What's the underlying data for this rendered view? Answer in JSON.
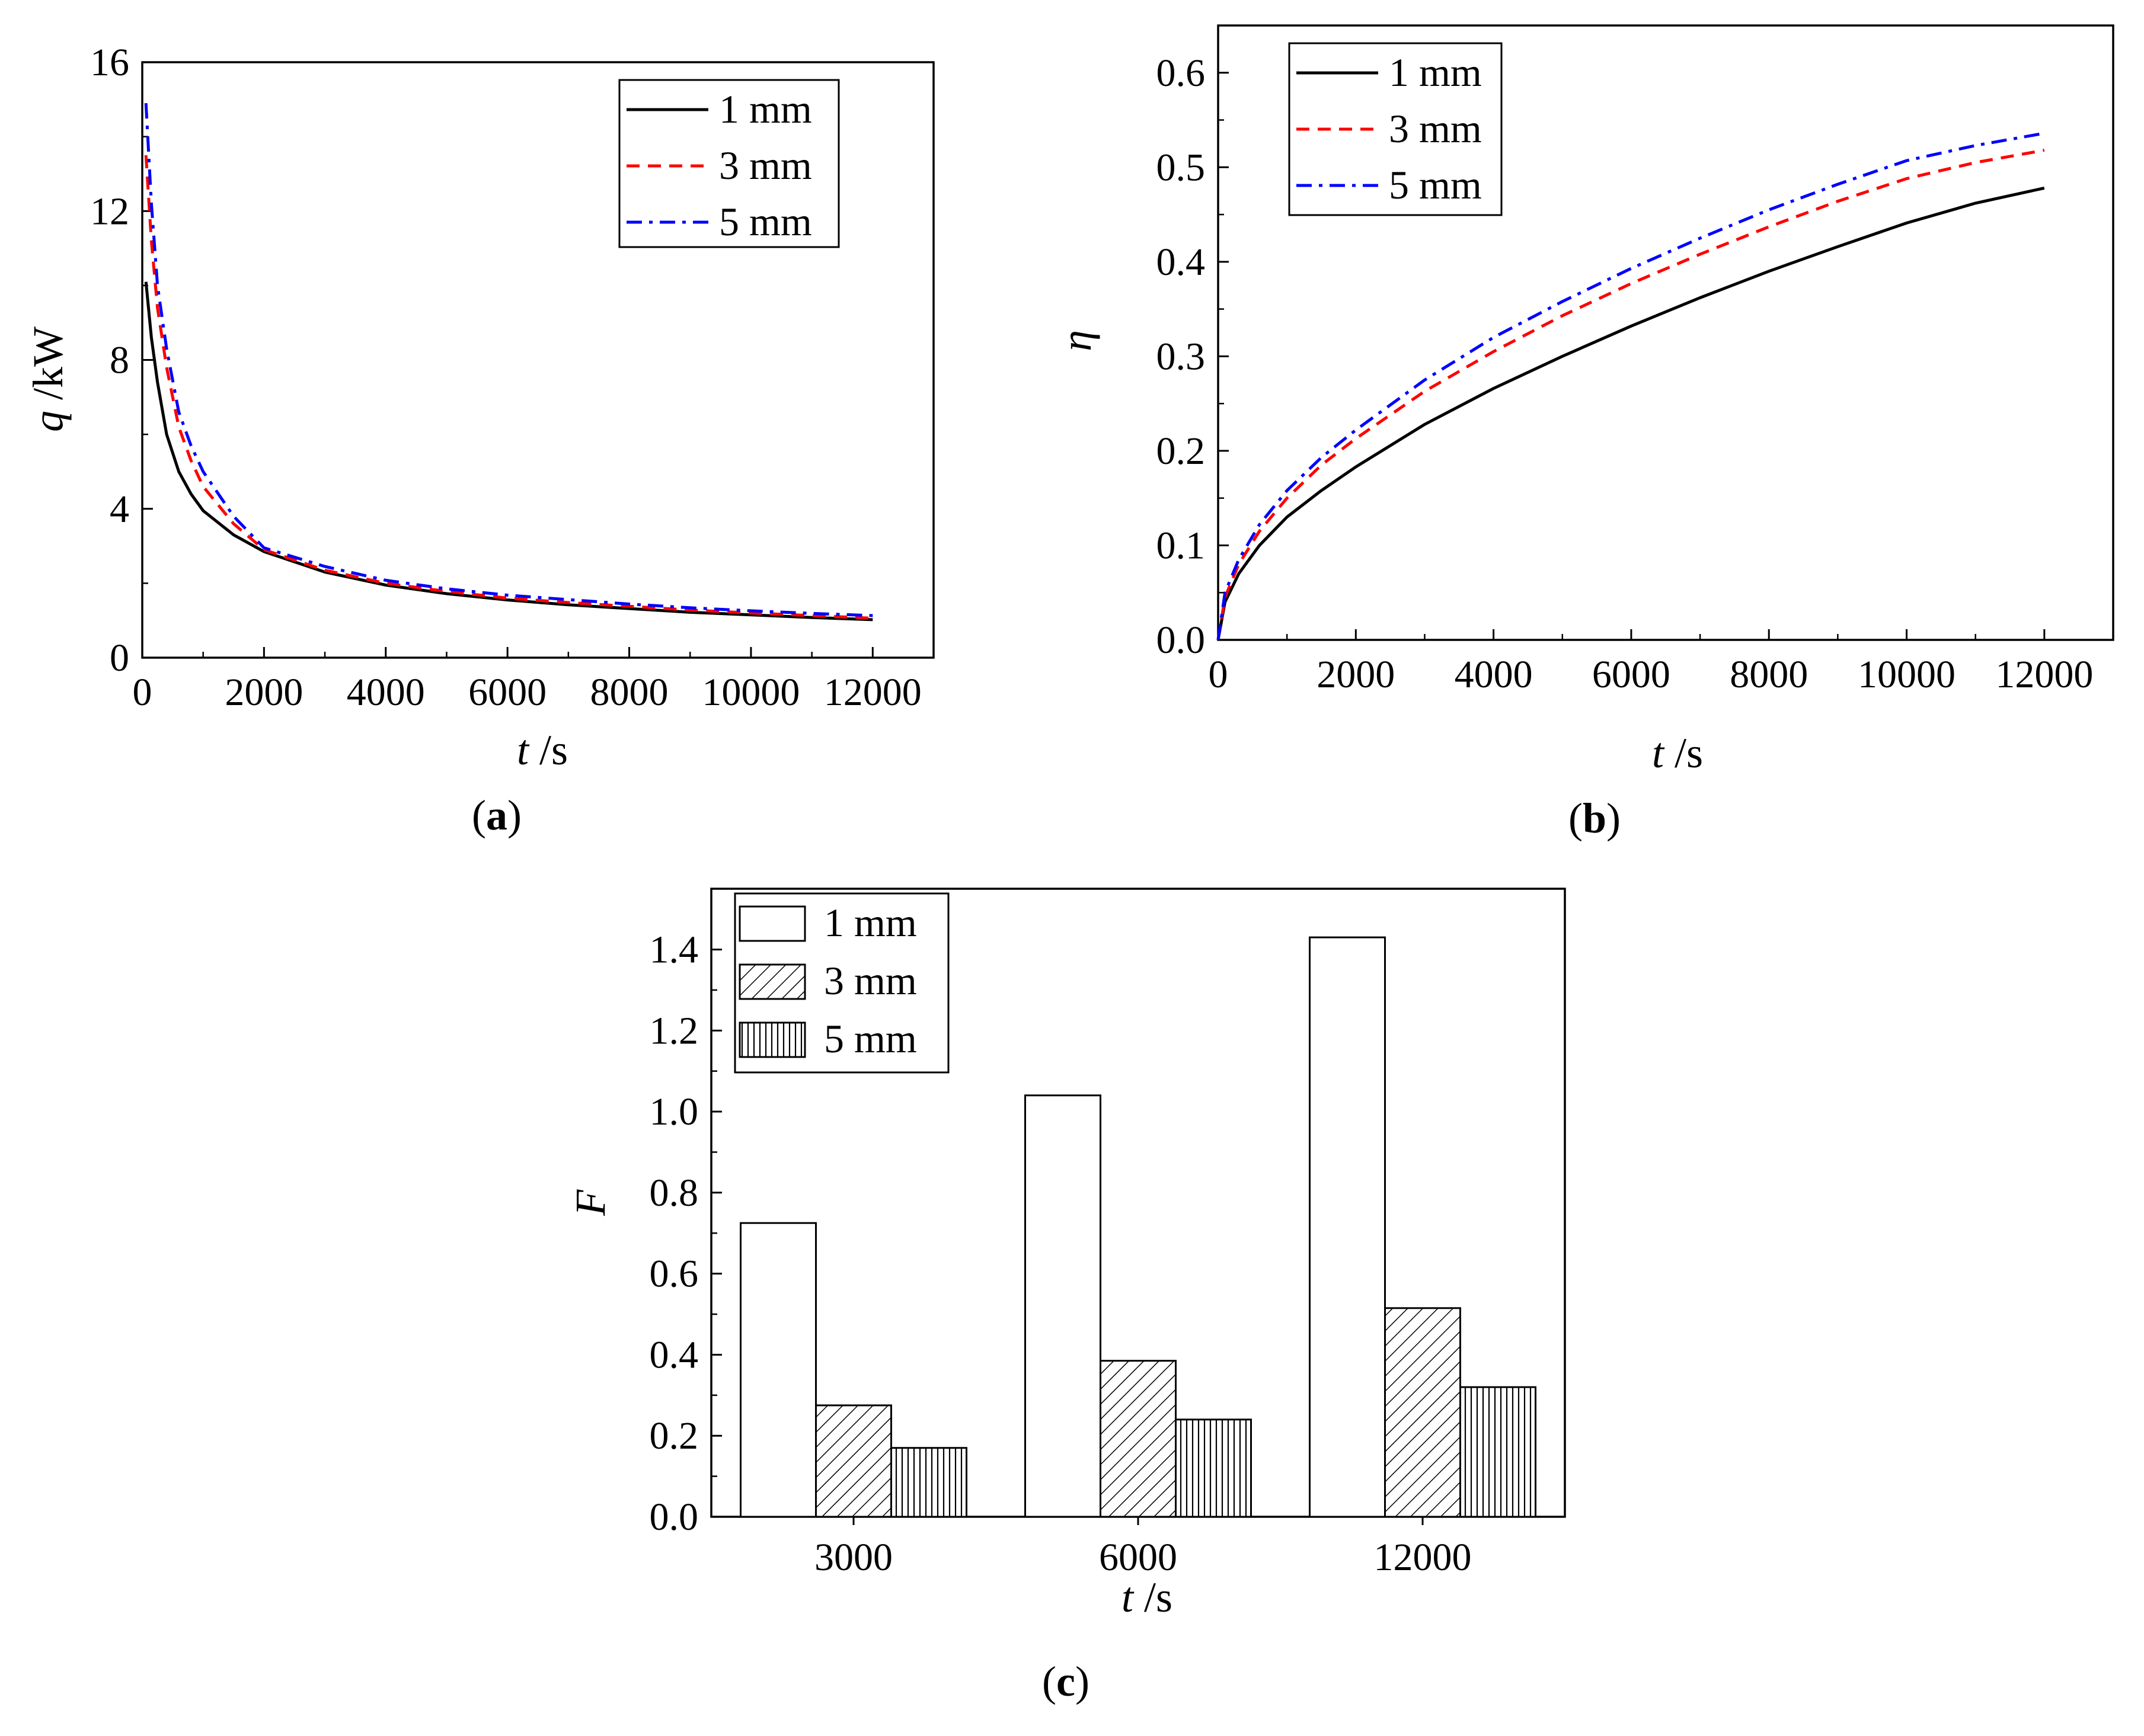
{
  "chart_data": [
    {
      "id": "a",
      "type": "line",
      "caption": "a",
      "xlabel": {
        "symbol": "t",
        "unit": " /s"
      },
      "ylabel": {
        "symbol": "q",
        "unit": " /kW"
      },
      "xlim": [
        0,
        13000
      ],
      "ylim": [
        0,
        16
      ],
      "xticks": [
        0,
        2000,
        4000,
        6000,
        8000,
        10000,
        12000
      ],
      "xtick_labels": [
        "0",
        "2000",
        "4000",
        "6000",
        "8000",
        "10000",
        "12000"
      ],
      "yticks": [
        0,
        4,
        8,
        12,
        16
      ],
      "ytick_labels": [
        "0",
        "4",
        "8",
        "12",
        "16"
      ],
      "legend_position": "top-right",
      "series": [
        {
          "name": "1 mm",
          "color": "#000000",
          "dash": "solid",
          "x": [
            60,
            150,
            250,
            400,
            600,
            800,
            1000,
            1500,
            2000,
            3000,
            4000,
            5000,
            6000,
            7000,
            8000,
            9000,
            10000,
            11000,
            12000
          ],
          "y": [
            10.1,
            8.6,
            7.4,
            6.0,
            5.0,
            4.4,
            3.95,
            3.3,
            2.85,
            2.3,
            1.95,
            1.72,
            1.55,
            1.42,
            1.32,
            1.22,
            1.15,
            1.08,
            1.02
          ]
        },
        {
          "name": "3 mm",
          "color": "#ff0000",
          "dash": "dashed",
          "x": [
            60,
            150,
            250,
            400,
            600,
            800,
            1000,
            1500,
            2000,
            3000,
            4000,
            5000,
            6000,
            7000,
            8000,
            9000,
            10000,
            11000,
            12000
          ],
          "y": [
            13.5,
            11.2,
            9.4,
            7.8,
            6.2,
            5.3,
            4.6,
            3.6,
            2.9,
            2.35,
            2.0,
            1.78,
            1.6,
            1.48,
            1.38,
            1.28,
            1.2,
            1.13,
            1.06
          ]
        },
        {
          "name": "5 mm",
          "color": "#0000ff",
          "dash": "dashdot",
          "x": [
            60,
            150,
            250,
            400,
            600,
            800,
            1000,
            1500,
            2000,
            3000,
            4000,
            5000,
            6000,
            7000,
            8000,
            9000,
            10000,
            11000,
            12000
          ],
          "y": [
            14.9,
            12.2,
            10.0,
            8.3,
            6.6,
            5.7,
            5.0,
            3.8,
            2.95,
            2.45,
            2.08,
            1.85,
            1.68,
            1.56,
            1.44,
            1.34,
            1.26,
            1.19,
            1.13
          ]
        }
      ]
    },
    {
      "id": "b",
      "type": "line",
      "caption": "b",
      "xlabel": {
        "symbol": "t",
        "unit": " /s"
      },
      "ylabel": {
        "symbol": "η",
        "unit": ""
      },
      "xlim": [
        0,
        13000
      ],
      "ylim": [
        0,
        0.65
      ],
      "xticks": [
        0,
        2000,
        4000,
        6000,
        8000,
        10000,
        12000
      ],
      "xtick_labels": [
        "0",
        "2000",
        "4000",
        "6000",
        "8000",
        "10000",
        "12000"
      ],
      "yticks": [
        0,
        0.1,
        0.2,
        0.3,
        0.4,
        0.5,
        0.6
      ],
      "ytick_labels": [
        "0.0",
        "0.1",
        "0.2",
        "0.3",
        "0.4",
        "0.5",
        "0.6"
      ],
      "legend_position": "top-left",
      "series": [
        {
          "name": "1 mm",
          "color": "#000000",
          "dash": "solid",
          "x": [
            0,
            100,
            300,
            600,
            1000,
            1500,
            2000,
            3000,
            4000,
            5000,
            6000,
            7000,
            8000,
            9000,
            10000,
            11000,
            12000
          ],
          "y": [
            0,
            0.04,
            0.07,
            0.1,
            0.13,
            0.158,
            0.183,
            0.228,
            0.266,
            0.3,
            0.332,
            0.362,
            0.39,
            0.416,
            0.441,
            0.462,
            0.478
          ]
        },
        {
          "name": "3 mm",
          "color": "#ff0000",
          "dash": "dashed",
          "x": [
            0,
            100,
            300,
            600,
            1000,
            1500,
            2000,
            3000,
            4000,
            5000,
            6000,
            7000,
            8000,
            9000,
            10000,
            11000,
            12000
          ],
          "y": [
            0,
            0.045,
            0.08,
            0.115,
            0.15,
            0.185,
            0.213,
            0.263,
            0.305,
            0.343,
            0.377,
            0.408,
            0.437,
            0.464,
            0.488,
            0.505,
            0.518
          ]
        },
        {
          "name": "5 mm",
          "color": "#0000ff",
          "dash": "dashdot",
          "x": [
            0,
            100,
            300,
            600,
            1000,
            1500,
            2000,
            3000,
            4000,
            5000,
            6000,
            7000,
            8000,
            9000,
            10000,
            11000,
            12000
          ],
          "y": [
            0,
            0.05,
            0.085,
            0.122,
            0.158,
            0.193,
            0.222,
            0.275,
            0.32,
            0.358,
            0.393,
            0.425,
            0.455,
            0.482,
            0.507,
            0.523,
            0.536
          ]
        }
      ]
    },
    {
      "id": "c",
      "type": "bar",
      "caption": "c",
      "xlabel": {
        "symbol": "t",
        "unit": " /s"
      },
      "ylabel": {
        "symbol": "F",
        "unit": ""
      },
      "ylim": [
        0,
        1.55
      ],
      "yticks": [
        0,
        0.2,
        0.4,
        0.6,
        0.8,
        1.0,
        1.2,
        1.4
      ],
      "ytick_labels": [
        "0.0",
        "0.2",
        "0.4",
        "0.6",
        "0.8",
        "1.0",
        "1.2",
        "1.4"
      ],
      "categories": [
        "3000",
        "6000",
        "12000"
      ],
      "legend_position": "top-left",
      "series": [
        {
          "name": "1 mm",
          "pattern": "empty",
          "values": [
            0.725,
            1.04,
            1.43
          ]
        },
        {
          "name": "3 mm",
          "pattern": "diagonal",
          "values": [
            0.275,
            0.385,
            0.515
          ]
        },
        {
          "name": "5 mm",
          "pattern": "vertical",
          "values": [
            0.17,
            0.24,
            0.32
          ]
        }
      ]
    }
  ]
}
